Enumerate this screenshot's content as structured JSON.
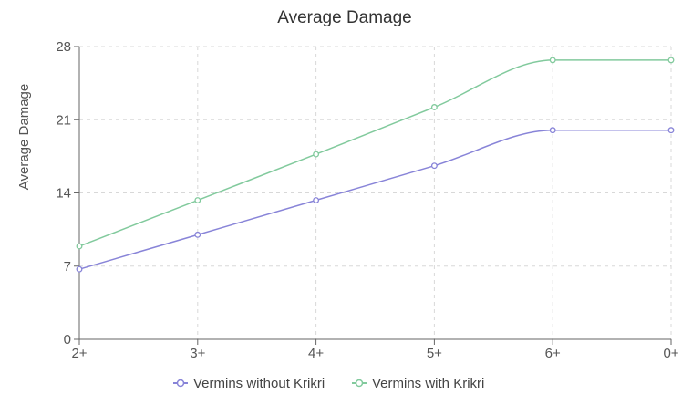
{
  "chart_data": {
    "type": "line",
    "title": "Average Damage",
    "xlabel": "",
    "ylabel": "Average Damage",
    "categories": [
      "2+",
      "3+",
      "4+",
      "5+",
      "6+",
      "0+"
    ],
    "ylim": [
      0,
      28
    ],
    "yticks": [
      0,
      7,
      14,
      21,
      28
    ],
    "grid": true,
    "legend_position": "bottom",
    "series": [
      {
        "name": "Vermins without Krikri",
        "color": "#8884d8",
        "values": [
          6.7,
          10,
          13.3,
          16.6,
          20,
          20
        ]
      },
      {
        "name": "Vermins with Krikri",
        "color": "#82ca9d",
        "values": [
          8.9,
          13.3,
          17.7,
          22.2,
          26.7,
          26.7
        ]
      }
    ]
  }
}
